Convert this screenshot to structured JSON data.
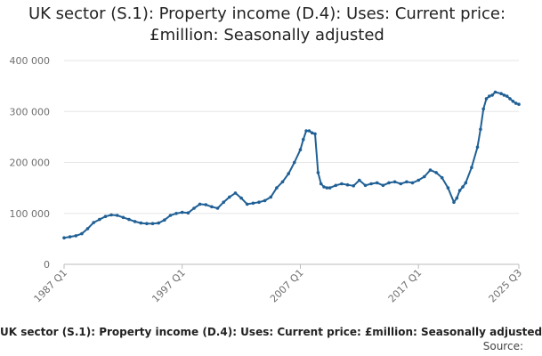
{
  "chart_data": {
    "type": "line",
    "title_line1": "UK sector (S.1): Property income (D.4): Uses: Current price:",
    "title_line2": "£million: Seasonally adjusted",
    "series_name": "UK sector (S.1): Property income (D.4): Uses: Current price: £million: Seasonally adjusted",
    "source_label": "Source:",
    "ylim": [
      0,
      400000
    ],
    "yticks": [
      0,
      100000,
      200000,
      300000,
      400000
    ],
    "ytick_labels": [
      "0",
      "100 000",
      "200 000",
      "300 000",
      "400 000"
    ],
    "xticks": [
      1987.0,
      1997.0,
      2007.0,
      2017.0,
      2025.5
    ],
    "xtick_labels": [
      "1987 Q1",
      "1997 Q1",
      "2007 Q1",
      "2017 Q1",
      "2025 Q3"
    ],
    "xlim": [
      1987.0,
      2025.5
    ],
    "color": "#206095",
    "x": [
      1987.0,
      1987.5,
      1988.0,
      1988.5,
      1989.0,
      1989.5,
      1990.0,
      1990.5,
      1991.0,
      1991.5,
      1992.0,
      1992.5,
      1993.0,
      1993.5,
      1994.0,
      1994.5,
      1995.0,
      1995.5,
      1996.0,
      1996.5,
      1997.0,
      1997.5,
      1998.0,
      1998.5,
      1999.0,
      1999.5,
      2000.0,
      2000.5,
      2001.0,
      2001.5,
      2002.0,
      2002.5,
      2003.0,
      2003.5,
      2004.0,
      2004.5,
      2005.0,
      2005.5,
      2006.0,
      2006.5,
      2007.0,
      2007.25,
      2007.5,
      2007.75,
      2008.0,
      2008.25,
      2008.5,
      2008.75,
      2009.0,
      2009.25,
      2009.5,
      2010.0,
      2010.5,
      2011.0,
      2011.5,
      2012.0,
      2012.5,
      2013.0,
      2013.5,
      2014.0,
      2014.5,
      2015.0,
      2015.5,
      2016.0,
      2016.5,
      2017.0,
      2017.5,
      2018.0,
      2018.5,
      2019.0,
      2019.5,
      2020.0,
      2020.25,
      2020.5,
      2020.75,
      2021.0,
      2021.5,
      2022.0,
      2022.25,
      2022.5,
      2022.75,
      2023.0,
      2023.25,
      2023.5,
      2024.0,
      2024.25,
      2024.5,
      2024.75,
      2025.0,
      2025.25,
      2025.5
    ],
    "values": [
      52000,
      54000,
      56000,
      60000,
      70000,
      82000,
      88000,
      94000,
      97000,
      96000,
      92000,
      88000,
      84000,
      81000,
      80000,
      80000,
      81000,
      87000,
      96000,
      100000,
      102000,
      101000,
      110000,
      118000,
      117000,
      113000,
      110000,
      122000,
      132000,
      140000,
      130000,
      118000,
      120000,
      122000,
      125000,
      132000,
      150000,
      162000,
      178000,
      200000,
      225000,
      245000,
      262000,
      262000,
      258000,
      256000,
      180000,
      158000,
      152000,
      150000,
      150000,
      155000,
      158000,
      156000,
      154000,
      165000,
      155000,
      158000,
      160000,
      155000,
      160000,
      162000,
      158000,
      162000,
      160000,
      165000,
      172000,
      185000,
      180000,
      170000,
      150000,
      122000,
      130000,
      145000,
      152000,
      160000,
      190000,
      230000,
      265000,
      305000,
      325000,
      330000,
      332000,
      338000,
      335000,
      332000,
      330000,
      325000,
      320000,
      316000,
      314000
    ]
  }
}
